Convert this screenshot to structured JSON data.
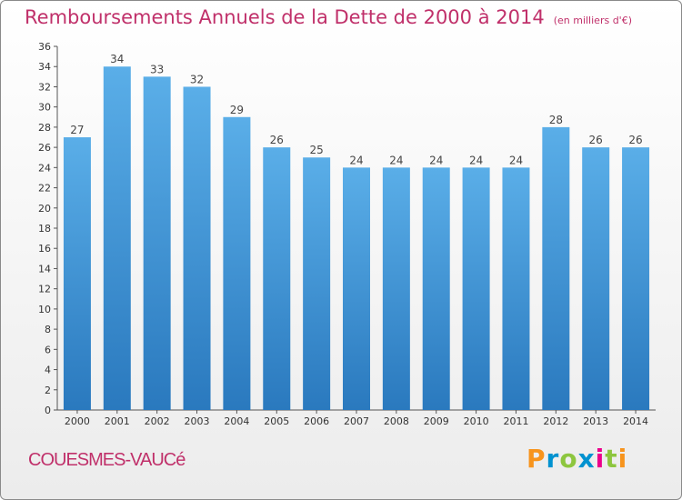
{
  "header": {
    "title": "Remboursements Annuels de la Dette de 2000 à 2014",
    "unit": "(en milliers d'€)"
  },
  "footer": {
    "commune": "COUESMES-VAUCé",
    "logo": "Proxiti"
  },
  "colors": {
    "title": "#c0306a",
    "bar_top": "#5aaee8",
    "bar_bottom": "#2a79be",
    "logo": [
      "#f7941d",
      "#0092d0",
      "#8dc63f",
      "#0092d0",
      "#ec008c",
      "#8dc63f",
      "#f7941d"
    ]
  },
  "chart_data": {
    "type": "bar",
    "categories": [
      "2000",
      "2001",
      "2002",
      "2003",
      "2004",
      "2005",
      "2006",
      "2007",
      "2008",
      "2009",
      "2010",
      "2011",
      "2012",
      "2013",
      "2014"
    ],
    "values": [
      27,
      34,
      33,
      32,
      29,
      26,
      25,
      24,
      24,
      24,
      24,
      24,
      28,
      26,
      26
    ],
    "ylim": [
      0,
      36
    ],
    "ytick_step": 2,
    "grid": false,
    "legend": "none"
  }
}
